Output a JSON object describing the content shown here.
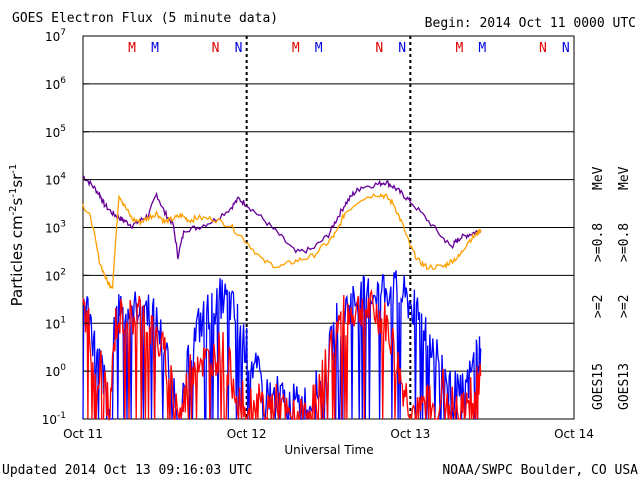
{
  "chart_data": {
    "type": "line",
    "title": "GOES Electron Flux (5 minute data)",
    "begin_label": "Begin: 2014 Oct 11 0000 UTC",
    "xlabel": "Universal Time",
    "ylabel": "Particles cm-2s-1sr-1",
    "ylabel_parts": {
      "base": "Particles cm",
      "e1": "-2",
      "s": "s",
      "e2": "-1",
      "sr": "sr",
      "e3": "-1"
    },
    "y_scale": "log",
    "ylim": [
      0.1,
      10000000
    ],
    "xlim_days": [
      0,
      3
    ],
    "x_ticks": [
      "Oct 11",
      "Oct 12",
      "Oct 13",
      "Oct 14"
    ],
    "y_ticks": [
      {
        "base": "10",
        "exp": "7"
      },
      {
        "base": "10",
        "exp": "6"
      },
      {
        "base": "10",
        "exp": "5"
      },
      {
        "base": "10",
        "exp": "4"
      },
      {
        "base": "10",
        "exp": "3"
      },
      {
        "base": "10",
        "exp": "2"
      },
      {
        "base": "10",
        "exp": "1"
      },
      {
        "base": "10",
        "exp": "0"
      },
      {
        "base": "10",
        "exp": "-1"
      }
    ],
    "grid": true,
    "alert_threshold": 1000,
    "noon_markers": [
      {
        "label": "M",
        "color": "#e00000",
        "day": 0.3
      },
      {
        "label": "M",
        "color": "#0000e0",
        "day": 0.44
      },
      {
        "label": "N",
        "color": "#e00000",
        "day": 0.81
      },
      {
        "label": "N",
        "color": "#0000e0",
        "day": 0.95
      },
      {
        "label": "M",
        "color": "#e00000",
        "day": 1.3
      },
      {
        "label": "M",
        "color": "#0000e0",
        "day": 1.44
      },
      {
        "label": "N",
        "color": "#e00000",
        "day": 1.81
      },
      {
        "label": "N",
        "color": "#0000e0",
        "day": 1.95
      },
      {
        "label": "M",
        "color": "#e00000",
        "day": 2.3
      },
      {
        "label": "M",
        "color": "#0000e0",
        "day": 2.44
      },
      {
        "label": "N",
        "color": "#e00000",
        "day": 2.81
      },
      {
        "label": "N",
        "color": "#0000e0",
        "day": 2.95
      }
    ],
    "legend": {
      "goes15": "GOES15",
      "goes13": "GOES13",
      "s1": ">=2",
      "s2": ">=0.8",
      "s3": ">=2",
      "s4": ">=0.8",
      "unit": "MeV",
      "placement": "right side, vertical"
    },
    "series": [
      {
        "name": "GOES15 >=0.8 MeV",
        "color": "#660099",
        "x": [
          0.0,
          0.05,
          0.1,
          0.13,
          0.18,
          0.22,
          0.25,
          0.3,
          0.35,
          0.4,
          0.45,
          0.5,
          0.55,
          0.58,
          0.62,
          0.7,
          0.8,
          0.9,
          0.95,
          1.0,
          1.1,
          1.2,
          1.3,
          1.4,
          1.5,
          1.55,
          1.6,
          1.65,
          1.7,
          1.8,
          1.85,
          1.9,
          1.95,
          2.0,
          2.1,
          2.2,
          2.25,
          2.28,
          2.3,
          2.35,
          2.4,
          2.43
        ],
        "y": [
          12000,
          8000,
          5000,
          3000,
          2000,
          1600,
          1400,
          1100,
          1400,
          1800,
          5000,
          2000,
          1200,
          250,
          900,
          1000,
          1400,
          2500,
          4000,
          3000,
          1500,
          700,
          300,
          350,
          700,
          1500,
          3000,
          5000,
          7000,
          8000,
          9000,
          7000,
          5000,
          3500,
          1500,
          600,
          400,
          500,
          600,
          700,
          800,
          900
        ]
      },
      {
        "name": "GOES13 >=0.8 MeV",
        "color": "#ffa000",
        "x": [
          0.0,
          0.05,
          0.1,
          0.15,
          0.18,
          0.22,
          0.25,
          0.3,
          0.35,
          0.4,
          0.45,
          0.5,
          0.55,
          0.6,
          0.65,
          0.7,
          0.8,
          0.9,
          1.0,
          1.1,
          1.2,
          1.3,
          1.4,
          1.5,
          1.55,
          1.6,
          1.7,
          1.8,
          1.85,
          1.9,
          1.95,
          2.0,
          2.05,
          2.1,
          2.2,
          2.25,
          2.3,
          2.35,
          2.4,
          2.43
        ],
        "y": [
          3000,
          1500,
          200,
          70,
          60,
          5000,
          3000,
          1500,
          1300,
          1600,
          2000,
          1300,
          1500,
          1800,
          1400,
          1600,
          1500,
          1100,
          500,
          200,
          150,
          200,
          250,
          500,
          800,
          2000,
          4000,
          5000,
          4500,
          3000,
          1200,
          400,
          200,
          150,
          150,
          200,
          250,
          500,
          700,
          900
        ]
      },
      {
        "name": "GOES15 >=2 MeV",
        "color": "#0000ff",
        "x": [
          0.0,
          0.04,
          0.08,
          0.12,
          0.16,
          0.2,
          0.25,
          0.3,
          0.35,
          0.4,
          0.45,
          0.5,
          0.55,
          0.6,
          0.65,
          0.7,
          0.75,
          0.8,
          0.85,
          0.9,
          0.95,
          1.0,
          1.05,
          1.1,
          1.15,
          1.2,
          1.25,
          1.3,
          1.35,
          1.4,
          1.45,
          1.5,
          1.55,
          1.6,
          1.65,
          1.7,
          1.75,
          1.8,
          1.85,
          1.9,
          1.95,
          2.0,
          2.05,
          2.1,
          2.15,
          2.2,
          2.25,
          2.3,
          2.35,
          2.4,
          2.43
        ],
        "y": [
          30,
          15,
          2,
          1,
          0.1,
          20,
          30,
          15,
          30,
          20,
          10,
          3,
          0.5,
          0.1,
          2,
          8,
          15,
          25,
          35,
          25,
          10,
          3,
          1,
          0.5,
          0.3,
          0.3,
          0.2,
          0.2,
          0.2,
          0.3,
          0.5,
          2,
          10,
          20,
          30,
          35,
          40,
          50,
          55,
          50,
          40,
          25,
          15,
          8,
          3,
          1,
          0.5,
          0.3,
          0.5,
          2,
          3
        ]
      },
      {
        "name": "GOES13 >=2 MeV",
        "color": "#ff0000",
        "x": [
          0.0,
          0.04,
          0.08,
          0.12,
          0.16,
          0.2,
          0.25,
          0.3,
          0.35,
          0.4,
          0.45,
          0.5,
          0.55,
          0.6,
          0.65,
          0.7,
          0.75,
          0.8,
          0.85,
          0.9,
          0.95,
          1.0,
          1.05,
          1.1,
          1.15,
          1.2,
          1.25,
          1.3,
          1.35,
          1.4,
          1.45,
          1.5,
          1.55,
          1.6,
          1.65,
          1.7,
          1.75,
          1.8,
          1.85,
          1.9,
          1.95,
          2.0,
          2.05,
          2.1,
          2.15,
          2.2,
          2.25,
          2.3,
          2.35,
          2.4,
          2.43
        ],
        "y": [
          20,
          8,
          0.3,
          2,
          0.1,
          10,
          15,
          12,
          20,
          10,
          5,
          2,
          0.5,
          0.1,
          1,
          2,
          1.5,
          2,
          3,
          1,
          0.3,
          0.2,
          0.2,
          0.2,
          0.2,
          0.2,
          0.1,
          0.1,
          0.1,
          0.2,
          0.5,
          2,
          8,
          15,
          18,
          20,
          18,
          15,
          10,
          3,
          0.5,
          0.2,
          0.1,
          0.3,
          0.1,
          0.5,
          0.2,
          0.1,
          0.3,
          0.5,
          0.8
        ]
      }
    ]
  },
  "footer": {
    "updated": "Updated 2014 Oct 13 09:16:03 UTC",
    "credit": "NOAA/SWPC Boulder, CO USA"
  }
}
